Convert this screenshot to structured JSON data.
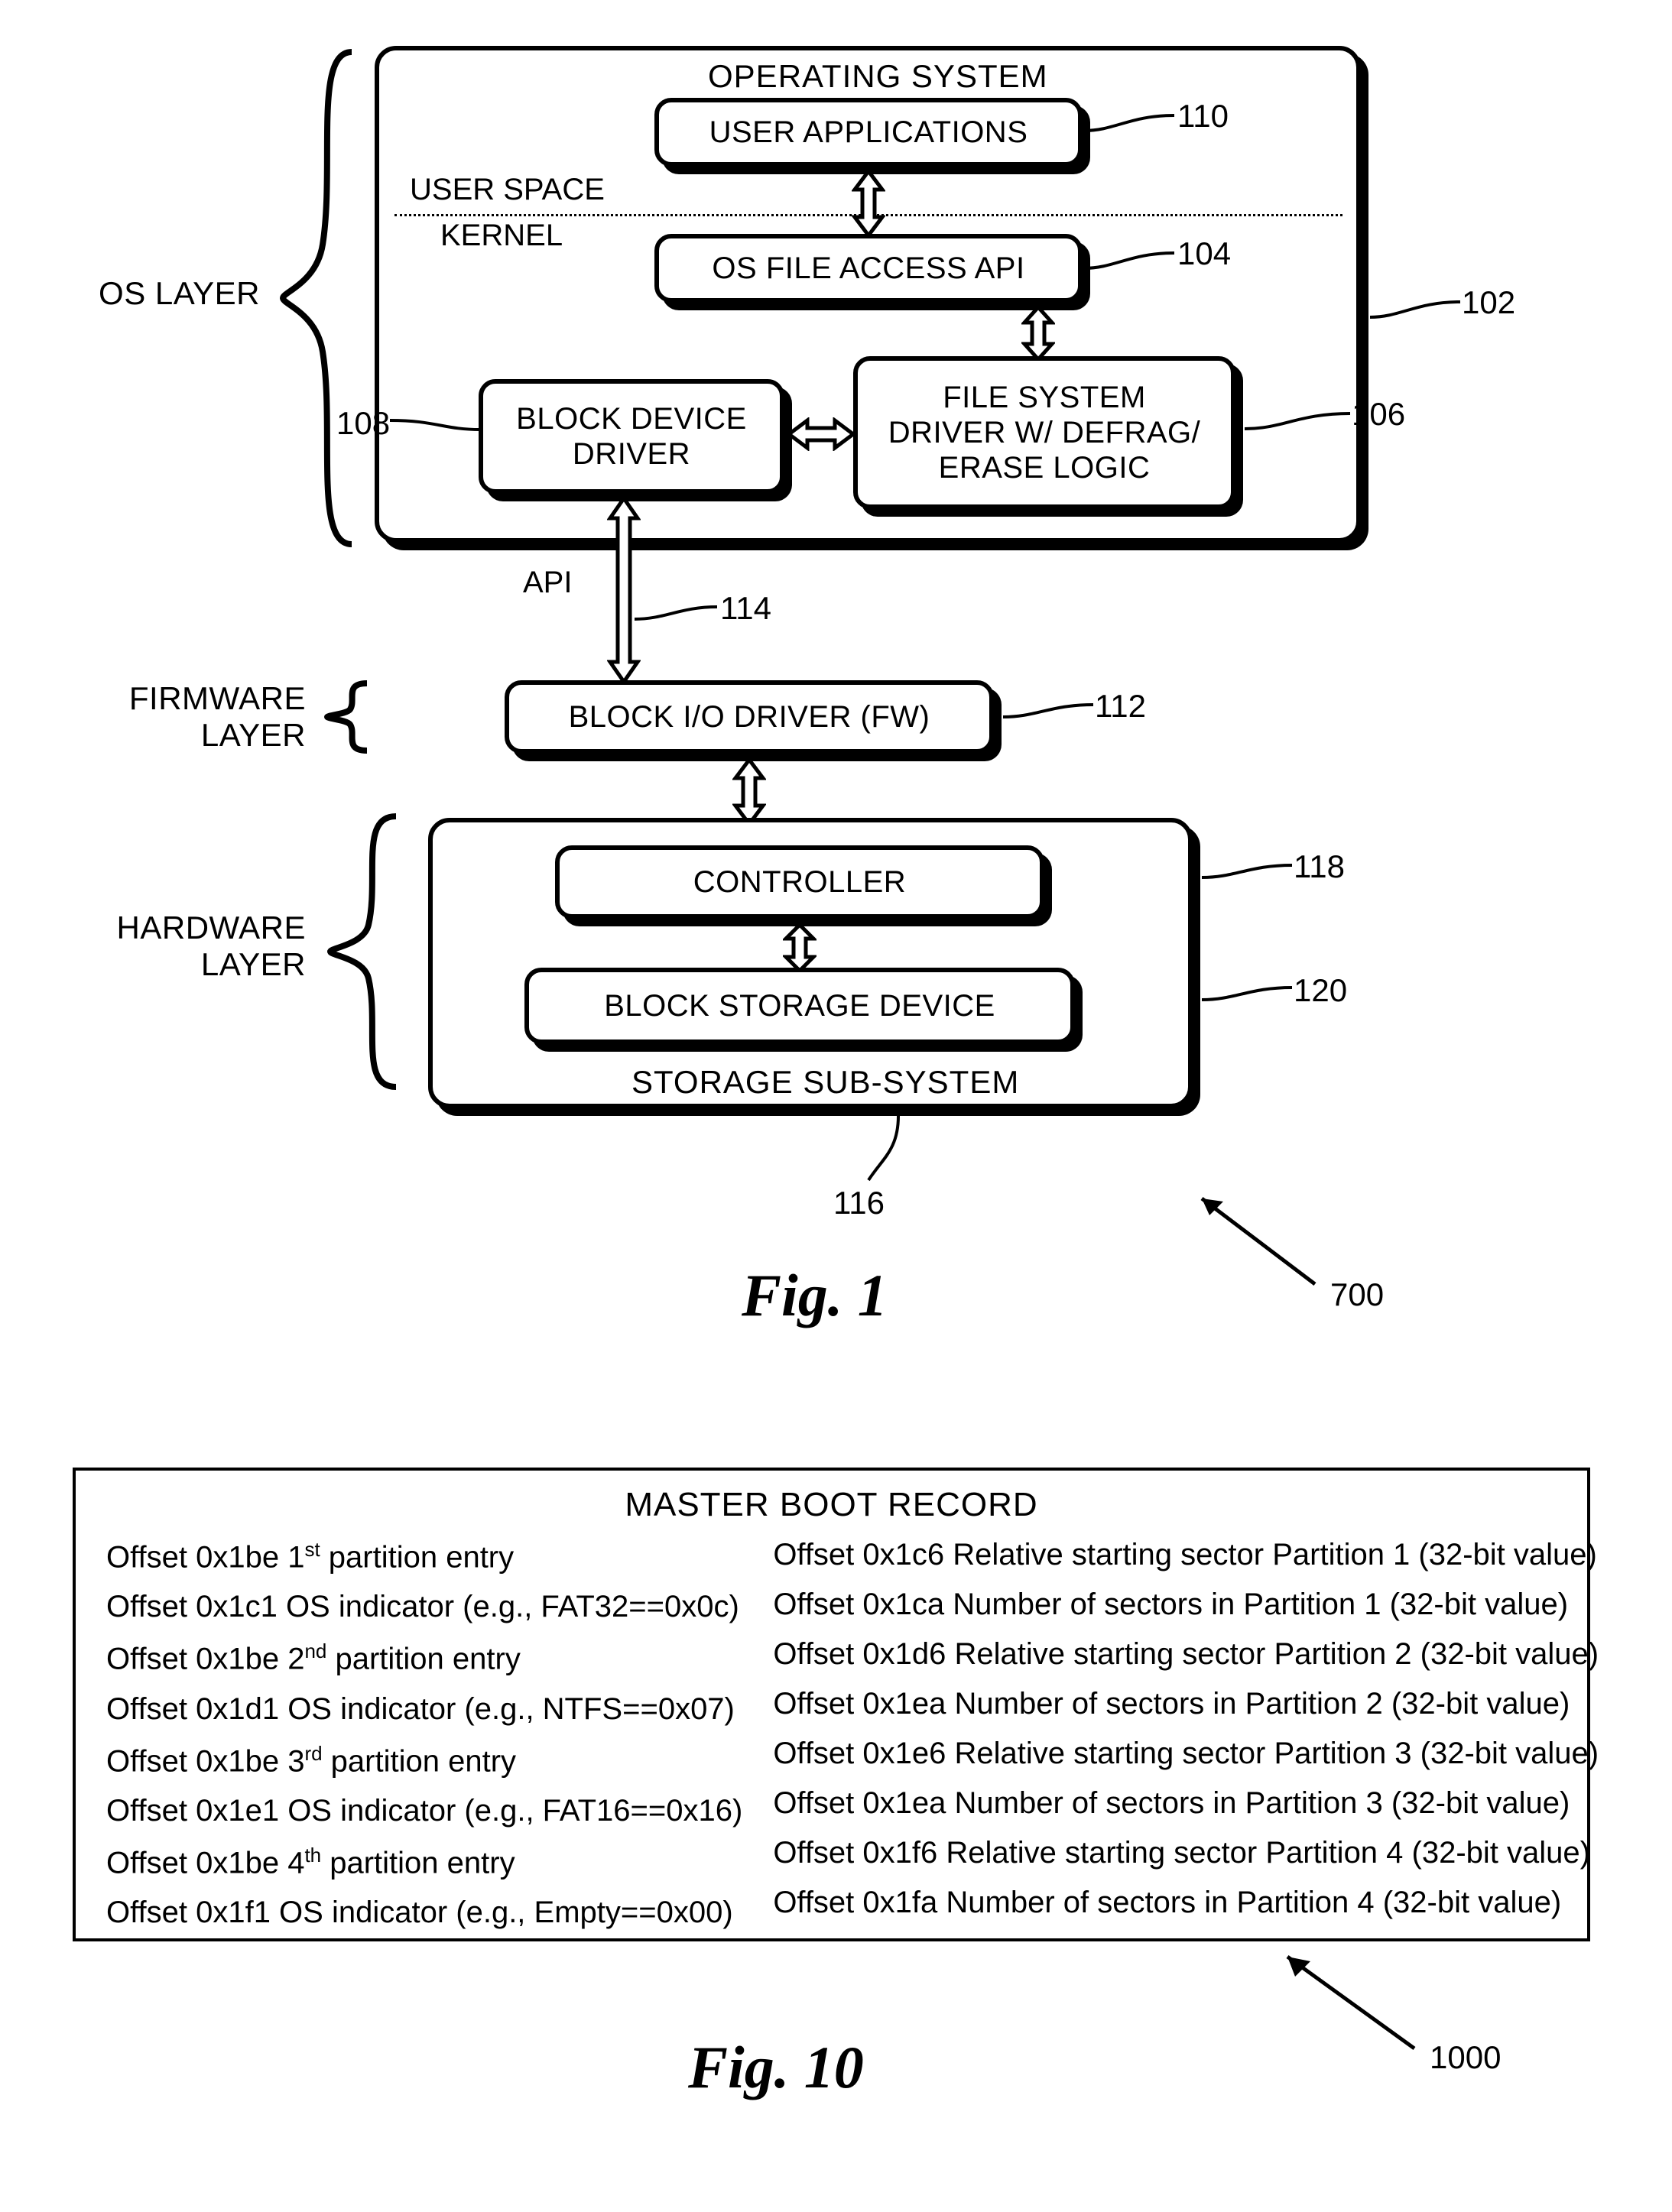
{
  "fig1": {
    "layer_labels": {
      "os": "OS LAYER",
      "firmware_line1": "FIRMWARE",
      "firmware_line2": "LAYER",
      "hardware_line1": "HARDWARE",
      "hardware_line2": "LAYER"
    },
    "os_panel": {
      "title": "OPERATING SYSTEM",
      "user_space": "USER SPACE",
      "kernel": "KERNEL",
      "user_apps": "USER APPLICATIONS",
      "os_file_api": "OS FILE ACCESS API",
      "block_driver_line1": "BLOCK DEVICE",
      "block_driver_line2": "DRIVER",
      "fs_driver_line1": "FILE SYSTEM",
      "fs_driver_line2": "DRIVER W/ DEFRAG/",
      "fs_driver_line3": "ERASE LOGIC"
    },
    "api_label": "API",
    "fw_box": "BLOCK I/O DRIVER (FW)",
    "storage_panel": {
      "controller": "CONTROLLER",
      "block_storage": "BLOCK STORAGE DEVICE",
      "subtitle": "STORAGE SUB-SYSTEM"
    },
    "refs": {
      "r110": "110",
      "r104": "104",
      "r102": "102",
      "r108": "108",
      "r106": "106",
      "r114": "114",
      "r112": "112",
      "r118": "118",
      "r120": "120",
      "r116": "116",
      "r700": "700"
    },
    "caption": "Fig. 1"
  },
  "fig10": {
    "title": "MASTER BOOT RECORD",
    "left": [
      {
        "prefix": "Offset 0x1be 1",
        "sup": "st",
        "suffix": " partition entry"
      },
      {
        "text": "Offset 0x1c1 OS indicator (e.g., FAT32==0x0c)"
      },
      {
        "prefix": "Offset 0x1be 2",
        "sup": "nd",
        "suffix": " partition entry"
      },
      {
        "text": "Offset 0x1d1 OS indicator (e.g., NTFS==0x07)"
      },
      {
        "prefix": "Offset 0x1be 3",
        "sup": "rd",
        "suffix": " partition entry"
      },
      {
        "text": "Offset 0x1e1 OS indicator (e.g., FAT16==0x16)"
      },
      {
        "prefix": "Offset 0x1be 4",
        "sup": "th",
        "suffix": " partition entry"
      },
      {
        "text": "Offset 0x1f1 OS indicator (e.g., Empty==0x00)"
      }
    ],
    "right": [
      {
        "text": "Offset 0x1c6 Relative starting sector Partition 1 (32-bit value)"
      },
      {
        "text": "Offset 0x1ca Number of sectors in  Partition 1 (32-bit value)"
      },
      {
        "text": "Offset 0x1d6 Relative starting sector Partition 2 (32-bit value)"
      },
      {
        "text": "Offset 0x1ea Number of sectors in  Partition 2 (32-bit value)"
      },
      {
        "text": "Offset 0x1e6 Relative starting sector Partition 3 (32-bit value)"
      },
      {
        "text": "Offset 0x1ea Number of sectors in  Partition 3 (32-bit value)"
      },
      {
        "text": "Offset 0x1f6 Relative starting sector Partition 4 (32-bit value)"
      },
      {
        "text": "Offset 0x1fa Number of sectors in  Partition 4 (32-bit value)"
      }
    ],
    "ref": "1000",
    "caption": "Fig. 10"
  },
  "style": {
    "stroke": "#000000",
    "stroke_width_box": 6,
    "stroke_width_thin": 4,
    "bg": "#ffffff"
  }
}
